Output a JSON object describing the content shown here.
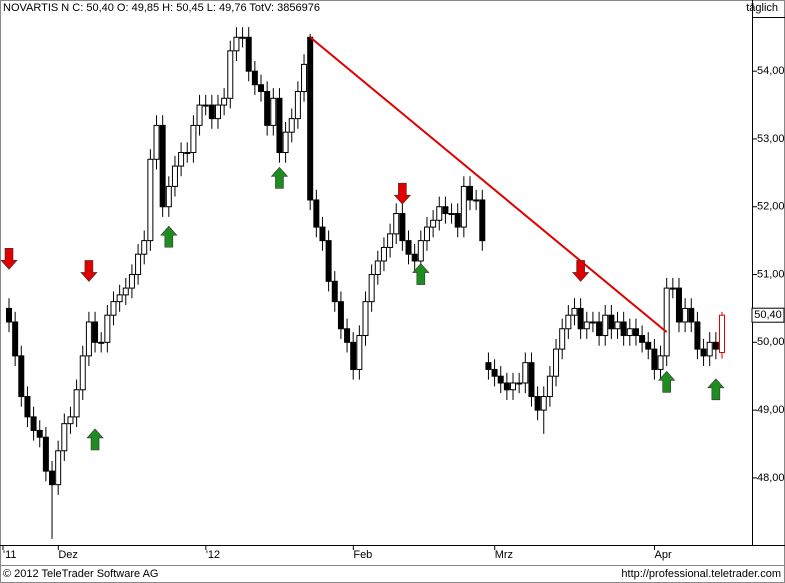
{
  "chart_data": {
    "type": "candlestick",
    "title": "NOVARTIS N C: 50,40 O: 49,85 H: 50,45 L: 49,76 TotV: 3856976",
    "period": "täglich",
    "footer_left": "© 2012 TeleTrader Software AG",
    "footer_right": "http://professional.teletrader.com",
    "categories": [
      "'11",
      null,
      null,
      null,
      null,
      null,
      null,
      null,
      null,
      "Dez",
      null,
      null,
      null,
      null,
      null,
      null,
      null,
      null,
      null,
      null,
      null,
      null,
      null,
      null,
      null,
      null,
      null,
      null,
      null,
      null,
      null,
      null,
      null,
      "'12",
      null,
      null,
      null,
      null,
      null,
      null,
      null,
      null,
      null,
      null,
      null,
      null,
      null,
      null,
      null,
      null,
      null,
      null,
      null,
      null,
      null,
      null,
      null,
      "Feb",
      null,
      null,
      null,
      null,
      null,
      null,
      null,
      null,
      null,
      null,
      null,
      null,
      null,
      null,
      null,
      null,
      null,
      null,
      null,
      null,
      null,
      null,
      "Mrz",
      null,
      null,
      null,
      null,
      null,
      null,
      null,
      null,
      null,
      null,
      null,
      null,
      null,
      null,
      null,
      null,
      null,
      null,
      null,
      null,
      null,
      null,
      null,
      null,
      null,
      "Apr",
      null,
      null,
      null,
      null,
      null,
      null,
      null,
      null,
      null,
      null
    ],
    "open": [
      50.5,
      50.3,
      49.8,
      49.2,
      48.9,
      48.7,
      48.6,
      48.1,
      47.9,
      48.4,
      48.8,
      48.9,
      49.3,
      49.8,
      50.3,
      50.0,
      50.0,
      50.4,
      50.6,
      50.7,
      50.8,
      51.0,
      51.3,
      51.5,
      52.7,
      53.2,
      52.0,
      52.3,
      52.6,
      52.8,
      52.8,
      53.2,
      53.5,
      53.5,
      53.3,
      53.5,
      53.6,
      54.3,
      54.5,
      54.5,
      54.0,
      53.8,
      53.7,
      53.2,
      53.6,
      52.8,
      53.1,
      53.3,
      53.7,
      54.5,
      52.1,
      51.7,
      51.5,
      50.9,
      50.6,
      50.2,
      50.0,
      49.6,
      50.1,
      50.6,
      51.0,
      51.2,
      51.4,
      51.6,
      51.9,
      51.5,
      51.3,
      51.2,
      51.5,
      51.7,
      51.8,
      52.0,
      51.9,
      51.9,
      51.7,
      52.3,
      52.1,
      52.1,
      49.7,
      49.6,
      49.5,
      49.4,
      49.3,
      49.4,
      49.4,
      49.7,
      49.2,
      49.0,
      49.2,
      49.5,
      49.9,
      50.2,
      50.4,
      50.5,
      50.2,
      50.3,
      50.3,
      50.1,
      50.4,
      50.2,
      50.3,
      50.1,
      50.2,
      50.1,
      50.0,
      49.9,
      49.6,
      49.8,
      50.8,
      50.8,
      50.3,
      50.5,
      50.3,
      49.9,
      49.8,
      50.0,
      49.85
    ],
    "high": [
      50.65,
      50.45,
      49.95,
      49.35,
      49.05,
      48.85,
      48.75,
      48.25,
      48.55,
      48.95,
      49.05,
      49.45,
      49.95,
      50.45,
      50.45,
      50.15,
      50.55,
      50.75,
      50.85,
      50.95,
      51.15,
      51.45,
      51.65,
      52.85,
      53.35,
      53.35,
      52.45,
      52.75,
      52.95,
      52.95,
      53.35,
      53.65,
      53.65,
      53.65,
      53.65,
      53.75,
      54.45,
      54.65,
      54.65,
      54.65,
      54.15,
      53.95,
      53.85,
      53.75,
      53.75,
      53.25,
      53.45,
      53.85,
      54.25,
      54.55,
      52.25,
      51.85,
      51.65,
      51.05,
      50.75,
      50.35,
      50.15,
      50.25,
      50.75,
      51.15,
      51.35,
      51.55,
      51.75,
      52.05,
      52.05,
      51.65,
      51.45,
      51.65,
      51.85,
      51.95,
      52.15,
      52.15,
      52.05,
      52.05,
      52.45,
      52.45,
      52.25,
      52.25,
      49.85,
      49.75,
      49.65,
      49.55,
      49.55,
      49.55,
      49.85,
      49.85,
      49.35,
      49.35,
      49.65,
      50.05,
      50.35,
      50.55,
      50.65,
      50.65,
      50.45,
      50.45,
      50.45,
      50.55,
      50.55,
      50.45,
      50.45,
      50.35,
      50.35,
      50.25,
      50.15,
      50.05,
      49.95,
      50.95,
      50.95,
      50.95,
      50.65,
      50.65,
      50.45,
      50.05,
      50.15,
      50.15,
      50.45
    ],
    "low": [
      50.15,
      49.65,
      49.05,
      48.75,
      48.55,
      48.45,
      47.95,
      47.1,
      47.75,
      48.25,
      48.65,
      48.75,
      49.15,
      49.65,
      49.85,
      49.85,
      49.85,
      50.25,
      50.45,
      50.55,
      50.65,
      50.85,
      51.15,
      51.35,
      52.55,
      51.85,
      51.85,
      52.15,
      52.45,
      52.65,
      52.65,
      53.05,
      53.35,
      53.15,
      53.15,
      53.35,
      53.45,
      54.15,
      54.35,
      53.85,
      53.65,
      53.55,
      53.05,
      53.05,
      52.65,
      52.65,
      52.95,
      53.15,
      53.55,
      51.95,
      51.55,
      51.35,
      50.75,
      50.45,
      50.05,
      49.85,
      49.45,
      49.45,
      49.95,
      50.45,
      50.85,
      51.05,
      51.25,
      51.45,
      51.35,
      51.15,
      51.05,
      51.05,
      51.35,
      51.55,
      51.65,
      51.75,
      51.75,
      51.55,
      51.55,
      51.95,
      51.95,
      51.35,
      49.45,
      49.35,
      49.25,
      49.15,
      49.15,
      49.25,
      49.25,
      49.05,
      48.85,
      48.65,
      49.05,
      49.35,
      49.75,
      50.05,
      50.25,
      50.05,
      50.05,
      50.15,
      49.95,
      49.95,
      50.05,
      50.05,
      49.95,
      49.95,
      49.95,
      49.85,
      49.75,
      49.45,
      49.45,
      49.65,
      50.65,
      50.15,
      50.15,
      50.15,
      49.75,
      49.65,
      49.65,
      49.75,
      49.76
    ],
    "close": [
      50.3,
      49.8,
      49.2,
      48.9,
      48.7,
      48.6,
      48.1,
      47.9,
      48.4,
      48.8,
      48.9,
      49.3,
      49.8,
      50.3,
      50.0,
      50.0,
      50.4,
      50.6,
      50.7,
      50.8,
      51.0,
      51.3,
      51.5,
      52.7,
      53.2,
      52.0,
      52.3,
      52.6,
      52.8,
      52.8,
      53.2,
      53.5,
      53.5,
      53.3,
      53.5,
      53.6,
      54.3,
      54.5,
      54.5,
      54.0,
      53.8,
      53.7,
      53.2,
      53.6,
      52.8,
      53.1,
      53.3,
      53.7,
      54.1,
      52.1,
      51.7,
      51.5,
      50.9,
      50.6,
      50.2,
      50.0,
      49.6,
      50.1,
      50.6,
      51.0,
      51.2,
      51.4,
      51.6,
      51.9,
      51.5,
      51.3,
      51.2,
      51.5,
      51.7,
      51.8,
      52.0,
      51.9,
      51.9,
      51.7,
      52.3,
      52.1,
      52.1,
      51.5,
      49.6,
      49.5,
      49.4,
      49.3,
      49.4,
      49.4,
      49.7,
      49.2,
      49.0,
      49.2,
      49.5,
      49.9,
      50.2,
      50.4,
      50.5,
      50.2,
      50.3,
      50.3,
      50.1,
      50.4,
      50.2,
      50.3,
      50.1,
      50.2,
      50.1,
      50.0,
      49.9,
      49.6,
      49.8,
      50.8,
      50.8,
      50.3,
      50.5,
      50.3,
      49.9,
      49.8,
      50.0,
      49.9,
      50.4
    ],
    "up_color": "#ffffff",
    "down_color": "#000000",
    "last_color": "#e00000",
    "ylim": [
      47.01,
      55.05
    ],
    "yticks": [
      {
        "value": 48,
        "label": "48,00"
      },
      {
        "value": 49,
        "label": "49,00"
      },
      {
        "value": 50,
        "label": "50,00"
      },
      {
        "value": 51,
        "label": "51,00"
      },
      {
        "value": 52,
        "label": "52,00"
      },
      {
        "value": 53,
        "label": "53,00"
      },
      {
        "value": 54,
        "label": "54,00"
      }
    ],
    "last_label": {
      "value": 50.4,
      "label": "50,40"
    },
    "trendline": {
      "x": [
        49,
        107
      ],
      "y": [
        54.5,
        50.15
      ],
      "color": "#e00000"
    },
    "buy_arrows": {
      "x": [
        14,
        26,
        44,
        67,
        107,
        115
      ],
      "values": [
        48.56,
        51.55,
        52.42,
        51.0,
        49.41,
        49.3
      ],
      "color": "#1e8c1e"
    },
    "sell_arrows": {
      "x": [
        0,
        13,
        64,
        93
      ],
      "values": [
        51.24,
        51.06,
        52.2,
        51.06
      ],
      "color": "#e00000"
    }
  }
}
